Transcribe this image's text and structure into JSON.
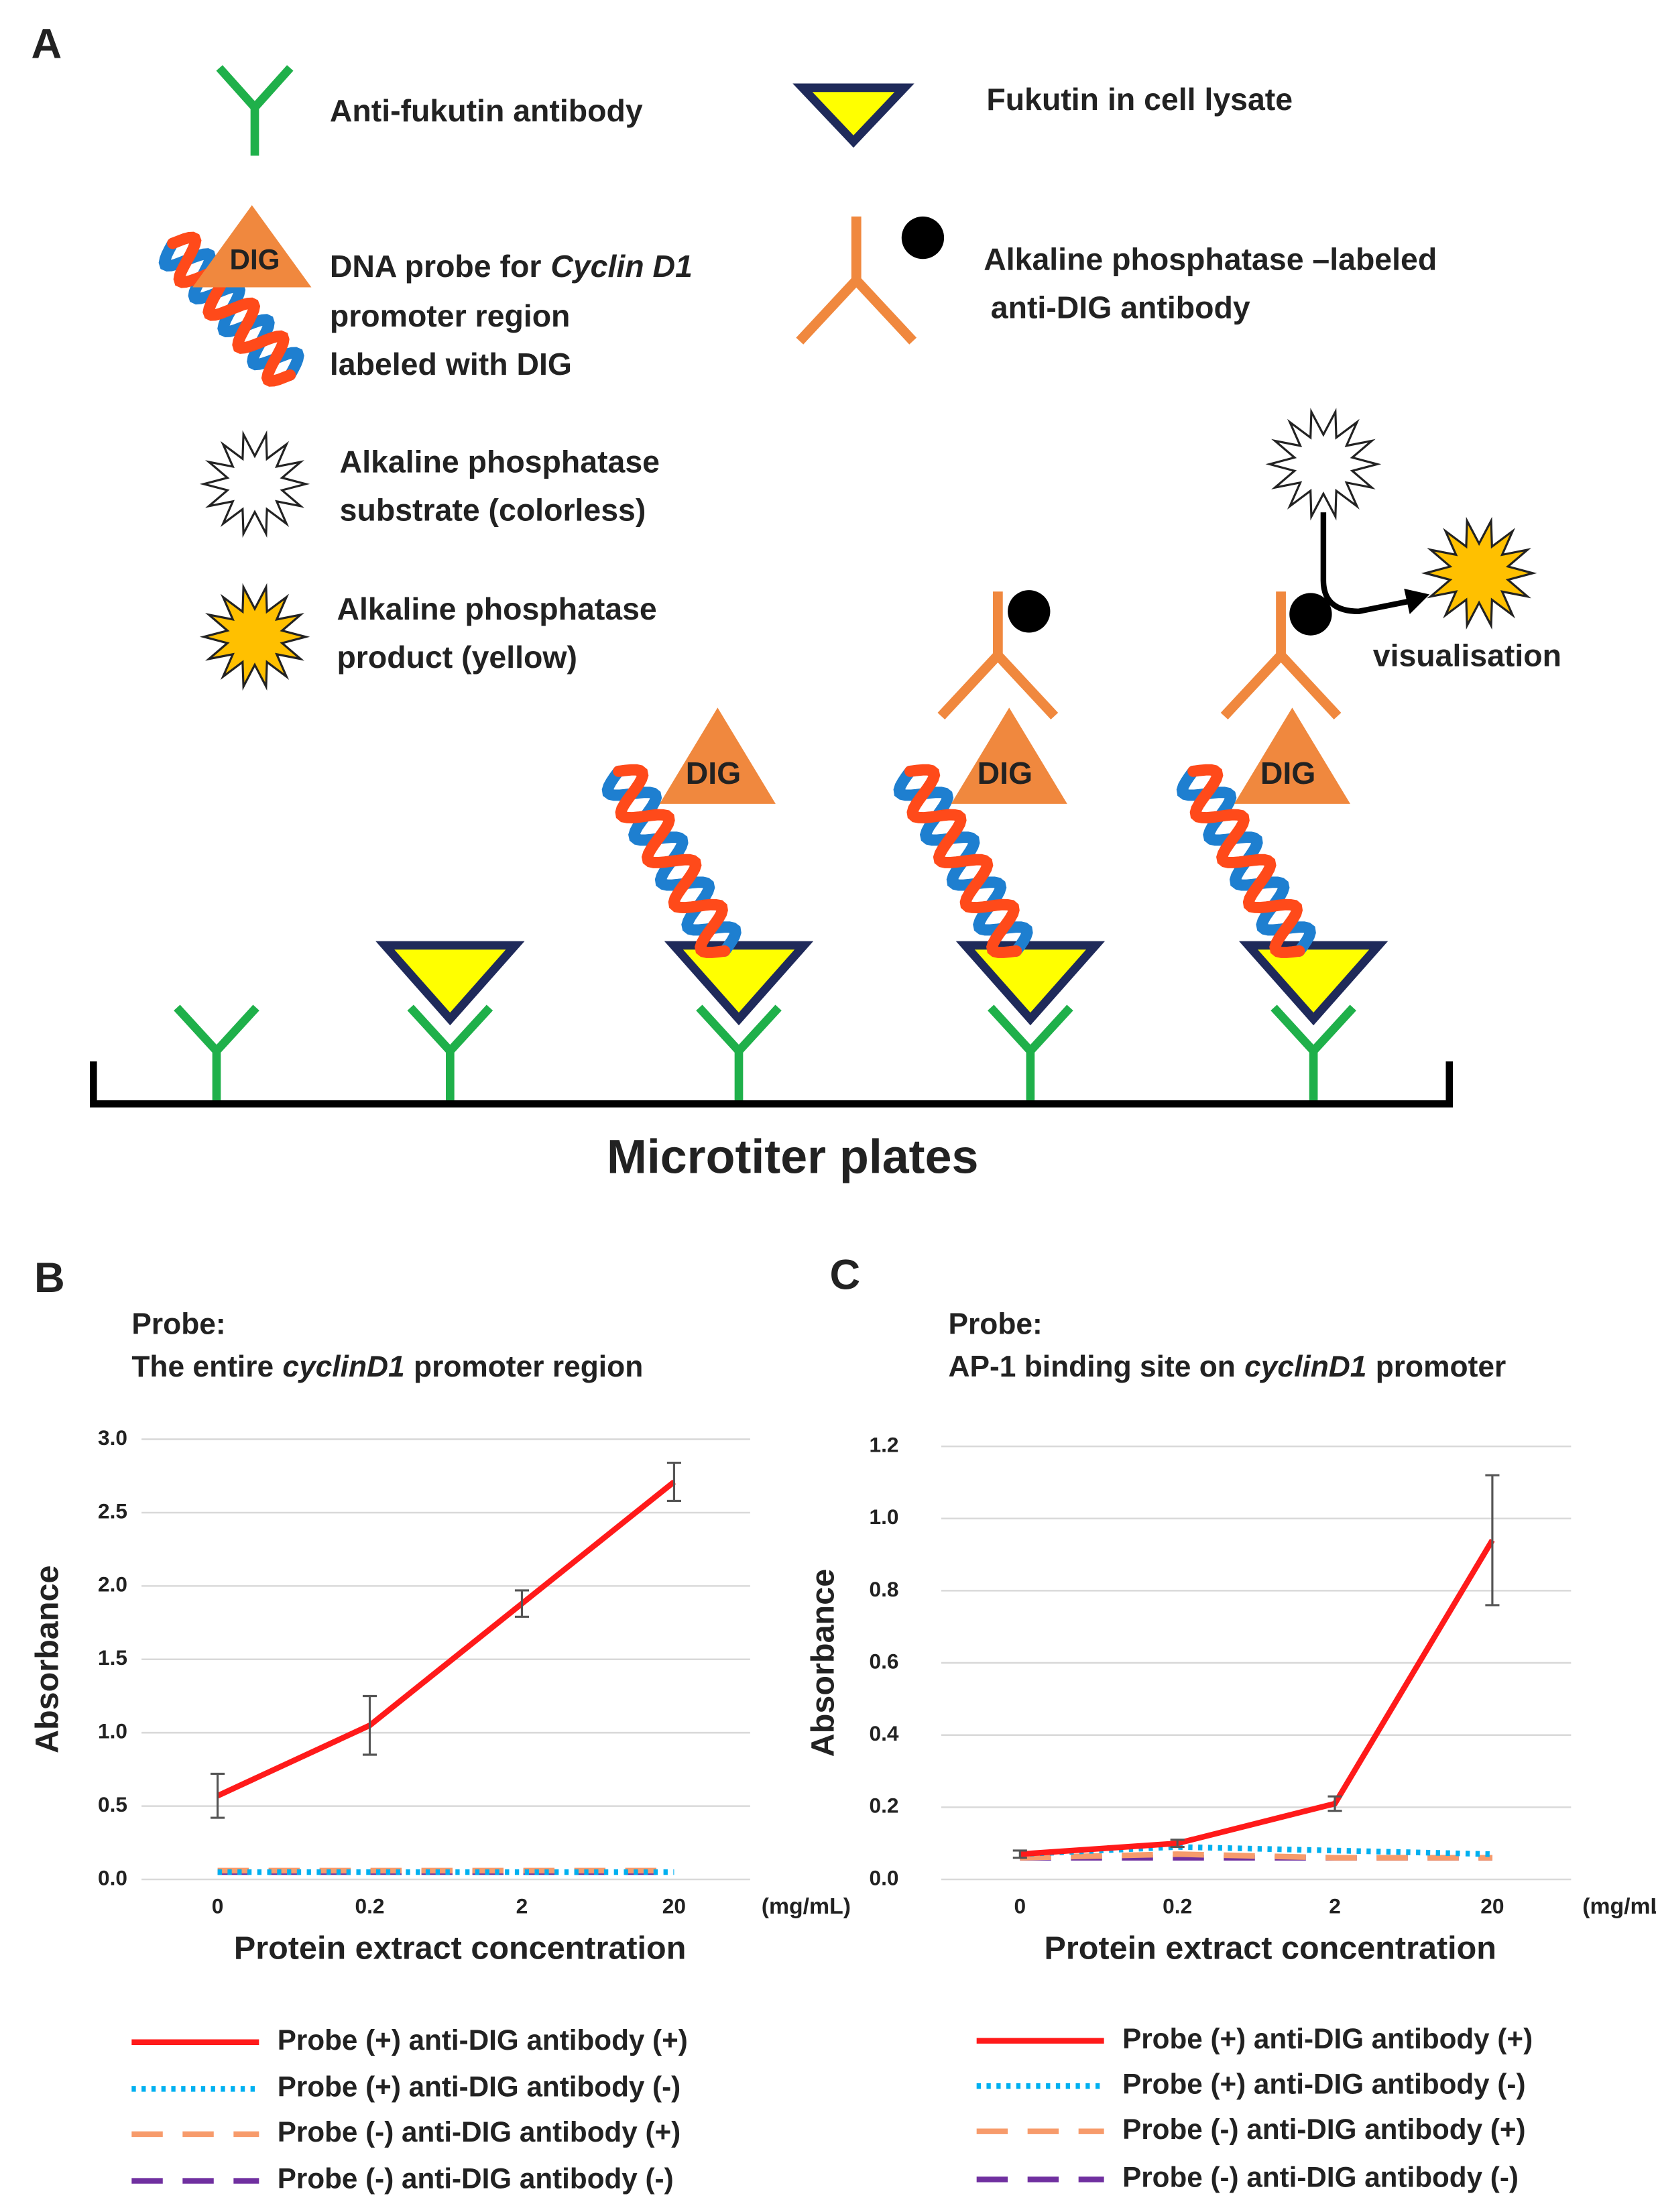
{
  "diagram": {
    "panel": "A",
    "anti_fukutin": "Anti-fukutin antibody",
    "fukutin": "Fukutin in cell lysate",
    "dna_probe": [
      "DNA probe for",
      "Cyclin D1",
      "promoter region",
      "labeled with DIG"
    ],
    "dig": "DIG",
    "ap_antibody": [
      "Alkaline phosphatase –labeled",
      "anti-DIG antibody"
    ],
    "substrate": [
      "Alkaline phosphatase",
      "substrate (colorless)"
    ],
    "product": [
      "Alkaline phosphatase",
      "product (yellow)"
    ],
    "visualisation": "visualisation",
    "plate": "Microtiter plates"
  },
  "chart_data": [
    {
      "type": "line",
      "panel": "B",
      "title": "Probe:",
      "subtitle": [
        "The entire",
        "cyclinD1",
        "promoter region"
      ],
      "categories": [
        "0",
        "0.2",
        "2",
        "20"
      ],
      "x_unit": "(mg/mL)",
      "xlabel": "Protein extract concentration",
      "ylabel": "Absorbance",
      "ylim": [
        0,
        3.0
      ],
      "yticks": [
        {
          "value": 0,
          "label": "0.0"
        },
        {
          "value": 0.5,
          "label": "0.5"
        },
        {
          "value": 1,
          "label": "1.0"
        },
        {
          "value": 1.5,
          "label": "1.5"
        },
        {
          "value": 2,
          "label": "2.0"
        },
        {
          "value": 2.5,
          "label": "2.5"
        },
        {
          "value": 3,
          "label": "3.0"
        }
      ],
      "grid": true,
      "series": [
        {
          "name": "Probe (+) anti-DIG antibody (+)",
          "color": "#ff1a1a",
          "line_style": "solid",
          "values": [
            0.57,
            1.05,
            1.88,
            2.71
          ],
          "errors": [
            0.15,
            0.2,
            0.09,
            0.13
          ]
        },
        {
          "name": "Probe (+) anti-DIG antibody (-)",
          "color": "#00b0f0",
          "line_style": "dotted",
          "values": [
            0.05,
            0.05,
            0.05,
            0.05
          ]
        },
        {
          "name": "Probe (-)  anti-DIG antibody (+)",
          "color": "#f79b6b",
          "line_style": "dashed",
          "values": [
            0.06,
            0.06,
            0.06,
            0.06
          ]
        },
        {
          "name": "Probe (-)  anti-DIG antibody (-)",
          "color": "#7030a0",
          "line_style": "dashed",
          "values": [
            0.05,
            0.05,
            0.05,
            0.05
          ]
        }
      ]
    },
    {
      "type": "line",
      "panel": "C",
      "title": "Probe:",
      "subtitle": [
        "AP-1 binding site on",
        "cyclinD1",
        "promoter"
      ],
      "categories": [
        "0",
        "0.2",
        "2",
        "20"
      ],
      "x_unit": "(mg/mL)",
      "xlabel": "Protein extract concentration",
      "ylabel": "Absorbance",
      "ylim": [
        0,
        1.2
      ],
      "yticks": [
        {
          "value": 0,
          "label": "0.0"
        },
        {
          "value": 0.2,
          "label": "0.2"
        },
        {
          "value": 0.4,
          "label": "0.4"
        },
        {
          "value": 0.6,
          "label": "0.6"
        },
        {
          "value": 0.8,
          "label": "0.8"
        },
        {
          "value": 1,
          "label": "1.0"
        },
        {
          "value": 1.2,
          "label": "1.2"
        }
      ],
      "grid": true,
      "series": [
        {
          "name": "Probe (+) anti-DIG antibody (+)",
          "color": "#ff1a1a",
          "line_style": "solid",
          "values": [
            0.07,
            0.1,
            0.21,
            0.94
          ],
          "errors": [
            0.01,
            0.01,
            0.02,
            0.18
          ]
        },
        {
          "name": "Probe (+) anti-DIG antibody (-)",
          "color": "#00b0f0",
          "line_style": "dotted",
          "values": [
            0.07,
            0.09,
            0.08,
            0.07
          ]
        },
        {
          "name": "Probe (-)  anti-DIG antibody (+)",
          "color": "#f79b6b",
          "line_style": "dashed",
          "values": [
            0.06,
            0.07,
            0.06,
            0.06
          ]
        },
        {
          "name": "Probe (-)  anti-DIG antibody (-)",
          "color": "#7030a0",
          "line_style": "dashed",
          "values": [
            0.06,
            0.06,
            0.06,
            0.06
          ]
        }
      ]
    }
  ]
}
